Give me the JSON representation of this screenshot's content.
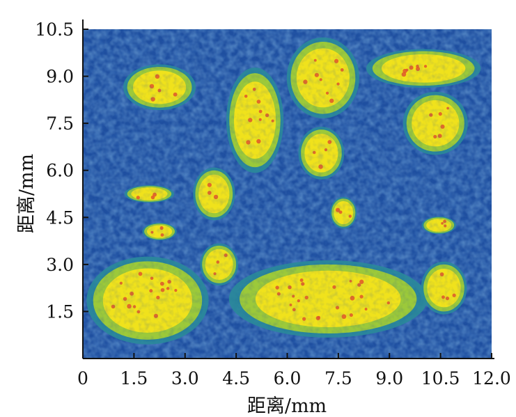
{
  "chart_data": {
    "type": "heatmap",
    "xlabel": "距离/mm",
    "ylabel": "距离/mm",
    "xlim": [
      0,
      12.0
    ],
    "ylim": [
      0,
      10.5
    ],
    "x_ticks": [
      "0",
      "1.5",
      "3.0",
      "4.5",
      "6.0",
      "7.5",
      "9.0",
      "10.5",
      "12.0"
    ],
    "y_ticks": [
      "1.5",
      "3.0",
      "4.5",
      "6.0",
      "7.5",
      "9.0",
      "10.5"
    ],
    "grid": false,
    "colormap": [
      "#7fb3e0",
      "#1f4fa0",
      "#2a8a9a",
      "#9cc93a",
      "#f0e21c",
      "#e0562a"
    ],
    "background_level": "low (blue)",
    "high_regions": [
      {
        "x": [
          1.3,
          3.2
        ],
        "y": [
          8.0,
          9.3
        ]
      },
      {
        "x": [
          4.3,
          5.8
        ],
        "y": [
          6.1,
          9.1
        ]
      },
      {
        "x": [
          6.1,
          8.0
        ],
        "y": [
          7.8,
          10.1
        ]
      },
      {
        "x": [
          8.5,
          11.5
        ],
        "y": [
          8.7,
          9.8
        ]
      },
      {
        "x": [
          9.5,
          11.2
        ],
        "y": [
          6.6,
          8.4
        ]
      },
      {
        "x": [
          6.4,
          7.6
        ],
        "y": [
          5.8,
          7.3
        ]
      },
      {
        "x": [
          3.3,
          4.4
        ],
        "y": [
          4.5,
          6.0
        ]
      },
      {
        "x": [
          1.3,
          2.6
        ],
        "y": [
          5.0,
          5.5
        ]
      },
      {
        "x": [
          0.3,
          3.5
        ],
        "y": [
          0.6,
          3.1
        ]
      },
      {
        "x": [
          4.6,
          9.8
        ],
        "y": [
          0.8,
          3.0
        ]
      },
      {
        "x": [
          10.0,
          11.2
        ],
        "y": [
          1.5,
          3.0
        ]
      },
      {
        "x": [
          3.5,
          4.5
        ],
        "y": [
          2.4,
          3.6
        ]
      },
      {
        "x": [
          7.3,
          8.0
        ],
        "y": [
          4.2,
          5.1
        ]
      },
      {
        "x": [
          1.8,
          2.7
        ],
        "y": [
          3.8,
          4.3
        ]
      },
      {
        "x": [
          10.0,
          10.9
        ],
        "y": [
          4.0,
          4.5
        ]
      }
    ]
  }
}
